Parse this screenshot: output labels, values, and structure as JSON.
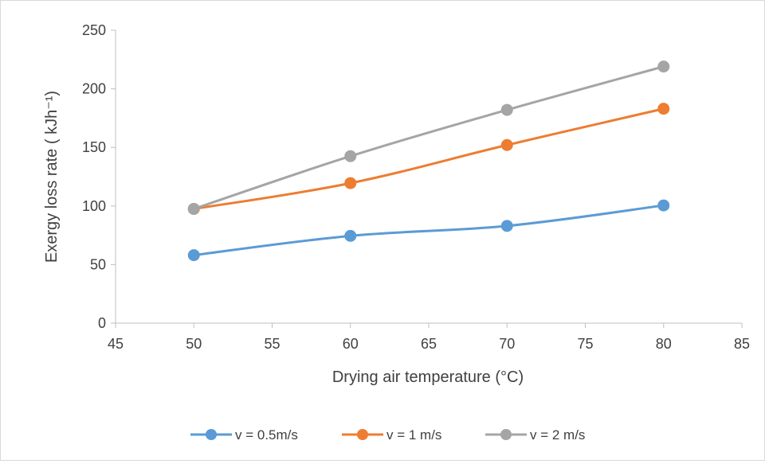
{
  "chart_data": {
    "type": "line",
    "title": "",
    "xlabel": "Drying air temperature (°C)",
    "ylabel": "Exergy loss rate ( kJh⁻¹)",
    "xlim": [
      45,
      85
    ],
    "ylim": [
      0,
      250
    ],
    "x_ticks": [
      45,
      50,
      55,
      60,
      65,
      70,
      75,
      80,
      85
    ],
    "y_ticks": [
      0,
      50,
      100,
      150,
      200,
      250
    ],
    "grid": false,
    "legend_position": "bottom",
    "x": [
      50,
      60,
      70,
      80
    ],
    "series": [
      {
        "name": "v = 0.5m/s",
        "color": "#5b9bd5",
        "values": [
          58,
          74.5,
          83,
          100.5
        ]
      },
      {
        "name": "v = 1 m/s",
        "color": "#ed7d31",
        "values": [
          97.5,
          119.5,
          152,
          183
        ]
      },
      {
        "name": "v = 2 m/s",
        "color": "#a5a5a5",
        "values": [
          97.5,
          142.5,
          182,
          219
        ]
      }
    ]
  }
}
